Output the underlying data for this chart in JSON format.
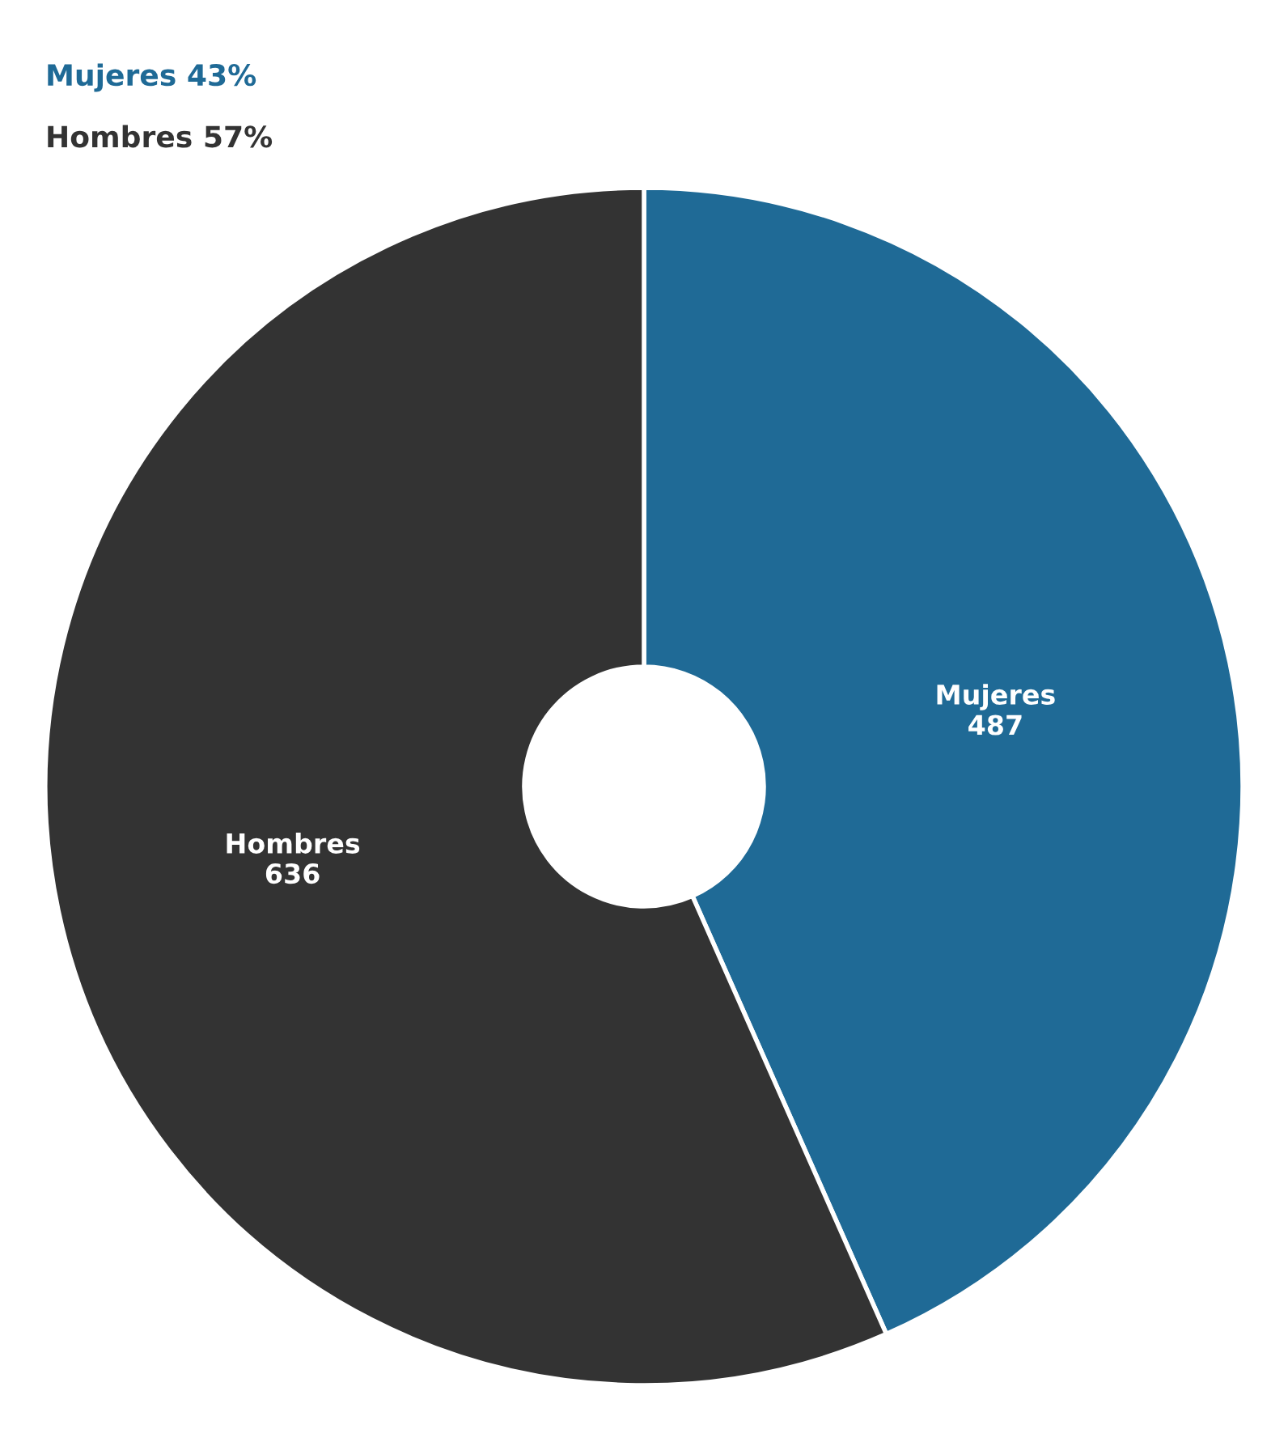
{
  "chart_data": {
    "type": "donut",
    "categories": [
      "Mujeres",
      "Hombres"
    ],
    "values": [
      487,
      636
    ],
    "colors": [
      "#1f6a96",
      "#333333"
    ],
    "data_labels": true,
    "annotations": [
      "Mujeres 43%",
      "Hombres 57%"
    ]
  }
}
